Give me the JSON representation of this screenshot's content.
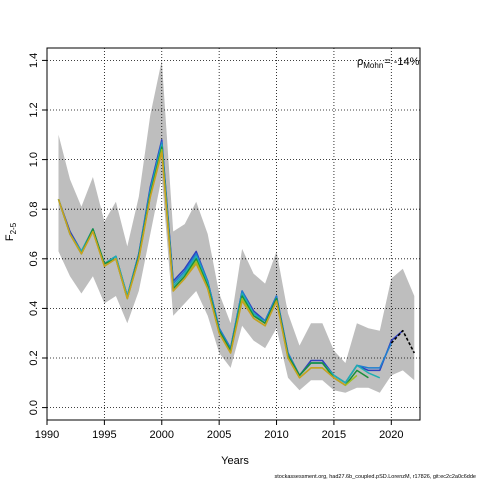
{
  "chart_data": {
    "type": "line",
    "title": "",
    "xlabel": "Years",
    "ylabel_main": "F",
    "ylabel_sub": "2-5",
    "xlim": [
      1990,
      2022.5
    ],
    "ylim": [
      -0.05,
      1.45
    ],
    "xticks": [
      1990,
      1995,
      2000,
      2005,
      2010,
      2015,
      2020
    ],
    "yticks": [
      0.0,
      0.2,
      0.4,
      0.6,
      0.8,
      1.0,
      1.2,
      1.4
    ],
    "ytick_labels": [
      "0.0",
      "0.2",
      "0.4",
      "0.6",
      "0.8",
      "1.0",
      "1.2",
      "1.4"
    ],
    "grid": true,
    "annotation_main": "ρ",
    "annotation_sub": "Mohn",
    "annotation_value": "= -14%",
    "band": {
      "color": "#bebebe",
      "x": [
        1991,
        1992,
        1993,
        1994,
        1995,
        1996,
        1997,
        1998,
        1999,
        2000,
        2001,
        2002,
        2003,
        2004,
        2005,
        2006,
        2007,
        2008,
        2009,
        2010,
        2011,
        2012,
        2013,
        2014,
        2015,
        2016,
        2017,
        2018,
        2019,
        2020,
        2021,
        2022
      ],
      "lower": [
        0.63,
        0.53,
        0.46,
        0.53,
        0.42,
        0.45,
        0.34,
        0.47,
        0.7,
        0.93,
        0.37,
        0.42,
        0.47,
        0.37,
        0.22,
        0.16,
        0.33,
        0.27,
        0.24,
        0.32,
        0.12,
        0.07,
        0.11,
        0.11,
        0.07,
        0.06,
        0.08,
        0.08,
        0.06,
        0.13,
        0.15,
        0.11
      ],
      "upper": [
        1.1,
        0.92,
        0.81,
        0.93,
        0.75,
        0.83,
        0.65,
        0.85,
        1.18,
        1.4,
        0.71,
        0.74,
        0.83,
        0.7,
        0.46,
        0.34,
        0.64,
        0.54,
        0.5,
        0.63,
        0.38,
        0.25,
        0.34,
        0.34,
        0.23,
        0.18,
        0.34,
        0.32,
        0.31,
        0.52,
        0.56,
        0.45
      ]
    },
    "series": [
      {
        "color": "#2f3fbf",
        "x": [
          1991,
          1992,
          1993,
          1994,
          1995,
          1996,
          1997,
          1998,
          1999,
          2000,
          2001,
          2002,
          2003,
          2004,
          2005,
          2006,
          2007,
          2008,
          2009,
          2010,
          2011,
          2012,
          2013,
          2014,
          2015,
          2016,
          2017,
          2018,
          2019,
          2020,
          2021
        ],
        "values": [
          0.84,
          0.71,
          0.63,
          0.72,
          0.58,
          0.61,
          0.45,
          0.62,
          0.89,
          1.08,
          0.51,
          0.56,
          0.63,
          0.51,
          0.32,
          0.24,
          0.47,
          0.39,
          0.35,
          0.45,
          0.22,
          0.13,
          0.19,
          0.19,
          0.13,
          0.1,
          0.17,
          0.15,
          0.15,
          0.27,
          0.31
        ]
      },
      {
        "color": "#1e7fd0",
        "x": [
          1991,
          1992,
          1993,
          1994,
          1995,
          1996,
          1997,
          1998,
          1999,
          2000,
          2001,
          2002,
          2003,
          2004,
          2005,
          2006,
          2007,
          2008,
          2009,
          2010,
          2011,
          2012,
          2013,
          2014,
          2015,
          2016,
          2017,
          2018,
          2019,
          2020
        ],
        "values": [
          0.84,
          0.7,
          0.63,
          0.72,
          0.58,
          0.61,
          0.45,
          0.62,
          0.88,
          1.07,
          0.5,
          0.55,
          0.62,
          0.51,
          0.32,
          0.24,
          0.47,
          0.38,
          0.35,
          0.45,
          0.22,
          0.13,
          0.18,
          0.18,
          0.13,
          0.1,
          0.17,
          0.16,
          0.16,
          0.26
        ]
      },
      {
        "color": "#20b0b0",
        "x": [
          1991,
          1992,
          1993,
          1994,
          1995,
          1996,
          1997,
          1998,
          1999,
          2000,
          2001,
          2002,
          2003,
          2004,
          2005,
          2006,
          2007,
          2008,
          2009,
          2010,
          2011,
          2012,
          2013,
          2014,
          2015,
          2016,
          2017,
          2018,
          2019
        ],
        "values": [
          0.84,
          0.7,
          0.63,
          0.72,
          0.58,
          0.61,
          0.45,
          0.61,
          0.87,
          1.06,
          0.49,
          0.54,
          0.61,
          0.5,
          0.31,
          0.23,
          0.46,
          0.38,
          0.34,
          0.44,
          0.21,
          0.13,
          0.18,
          0.18,
          0.13,
          0.1,
          0.17,
          0.14,
          0.12
        ]
      },
      {
        "color": "#1a8f3a",
        "x": [
          1991,
          1992,
          1993,
          1994,
          1995,
          1996,
          1997,
          1998,
          1999,
          2000,
          2001,
          2002,
          2003,
          2004,
          2005,
          2006,
          2007,
          2008,
          2009,
          2010,
          2011,
          2012,
          2013,
          2014,
          2015,
          2016,
          2017,
          2018
        ],
        "values": [
          0.84,
          0.7,
          0.62,
          0.72,
          0.58,
          0.6,
          0.44,
          0.61,
          0.86,
          1.05,
          0.48,
          0.53,
          0.6,
          0.49,
          0.31,
          0.23,
          0.45,
          0.37,
          0.34,
          0.44,
          0.21,
          0.13,
          0.18,
          0.18,
          0.12,
          0.09,
          0.15,
          0.12
        ]
      },
      {
        "color": "#9cbf22",
        "x": [
          1991,
          1992,
          1993,
          1994,
          1995,
          1996,
          1997,
          1998,
          1999,
          2000,
          2001,
          2002,
          2003,
          2004,
          2005,
          2006,
          2007,
          2008,
          2009,
          2010,
          2011,
          2012,
          2013,
          2014,
          2015,
          2016,
          2017
        ],
        "values": [
          0.84,
          0.7,
          0.62,
          0.71,
          0.57,
          0.6,
          0.44,
          0.6,
          0.85,
          1.04,
          0.47,
          0.52,
          0.59,
          0.48,
          0.3,
          0.22,
          0.44,
          0.36,
          0.33,
          0.43,
          0.2,
          0.12,
          0.16,
          0.16,
          0.12,
          0.09,
          0.13
        ]
      },
      {
        "color": "#c8a020",
        "x": [
          1991,
          1992,
          1993,
          1994,
          1995,
          1996,
          1997,
          1998,
          1999,
          2000,
          2001,
          2002,
          2003,
          2004,
          2005,
          2006,
          2007,
          2008,
          2009,
          2010,
          2011,
          2012,
          2013,
          2014,
          2015,
          2016
        ],
        "values": [
          0.84,
          0.7,
          0.62,
          0.71,
          0.57,
          0.6,
          0.44,
          0.6,
          0.85,
          1.03,
          0.47,
          0.52,
          0.58,
          0.48,
          0.3,
          0.22,
          0.43,
          0.36,
          0.33,
          0.43,
          0.2,
          0.12,
          0.16,
          0.16,
          0.12,
          0.09
        ]
      },
      {
        "color": "#000000",
        "dashed": true,
        "x": [
          2020,
          2021,
          2022
        ],
        "values": [
          0.26,
          0.31,
          0.22
        ]
      }
    ],
    "footer": "stockassessment.org, had27.6b_coupled.pSD.LorenzM, r17826, git:ec2c2a0c6dde"
  }
}
